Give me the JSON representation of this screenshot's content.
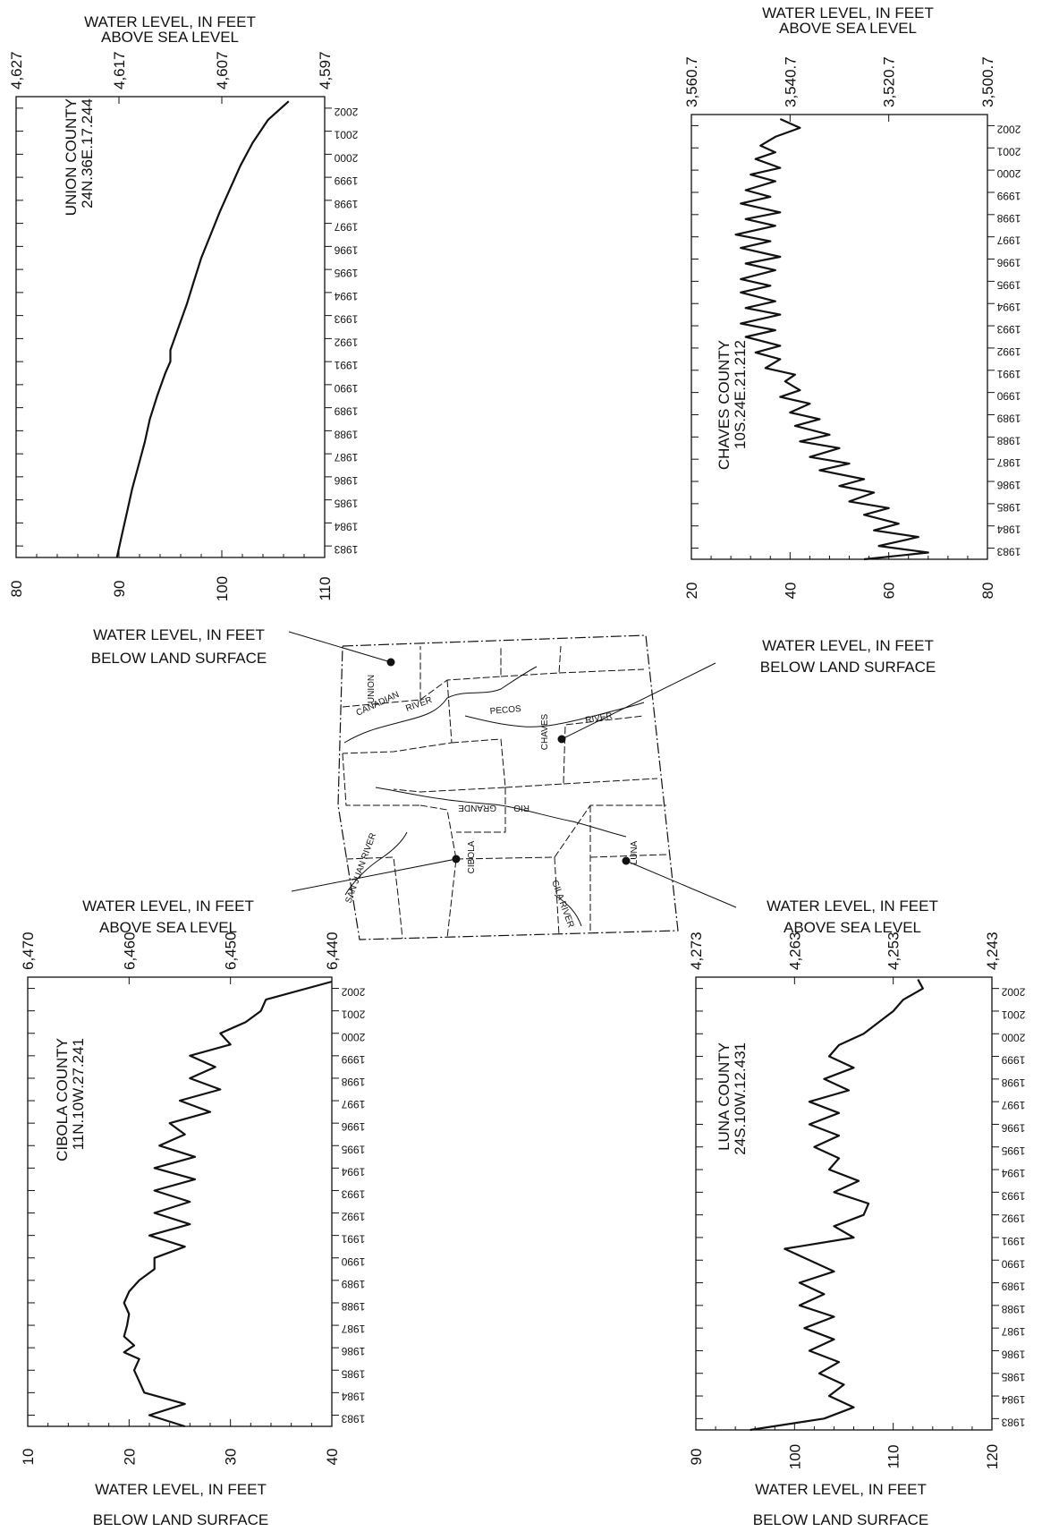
{
  "colors": {
    "ink": "#111111",
    "background": "#ffffff"
  },
  "labels": {
    "above_sea_level": [
      "WATER LEVEL, IN FEET",
      "ABOVE SEA LEVEL"
    ],
    "below_land_surface": [
      "WATER LEVEL, IN FEET",
      "BELOW LAND SURFACE"
    ]
  },
  "map": {
    "county_labels": [
      "UNION",
      "CHAVES",
      "CIBOLA",
      "LUNA"
    ],
    "river_labels": [
      "CANADIAN",
      "RIVER",
      "PECOS",
      "RIVER",
      "RIO",
      "GRANDE",
      "SAN JUAN RIVER",
      "GILA RIVER"
    ]
  },
  "chart_data": [
    {
      "type": "line",
      "title": "UNION COUNTY",
      "subtitle": "24N.36E.17.244",
      "time_axis_ticks": [
        "1983",
        "1984",
        "1985",
        "1986",
        "1987",
        "1988",
        "1989",
        "1990",
        "1991",
        "1992",
        "1993",
        "1994",
        "1995",
        "1996",
        "1997",
        "1998",
        "1999",
        "2000",
        "2001",
        "2002"
      ],
      "below_land_surface_ticks": [
        "80",
        "90",
        "100",
        "110"
      ],
      "below_land_surface_range": [
        80,
        110
      ],
      "above_sea_level_ticks": [
        "4,627",
        "4,617",
        "4,607",
        "4,597"
      ],
      "xlabel_top": "WATER LEVEL, IN FEET ABOVE SEA LEVEL",
      "xlabel_bottom": "WATER LEVEL, IN FEET BELOW LAND SURFACE",
      "x": [
        1983,
        1984,
        1985,
        1986,
        1987,
        1988,
        1989,
        1990,
        1991,
        1991.5,
        1992,
        1993,
        1994,
        1995,
        1996,
        1997,
        1998,
        1999,
        2000,
        2001,
        2002,
        2002.8
      ],
      "y": [
        89.8,
        90.3,
        90.8,
        91.3,
        91.9,
        92.5,
        93.0,
        93.7,
        94.5,
        95.0,
        95.0,
        95.8,
        96.6,
        97.3,
        98.0,
        98.9,
        99.8,
        100.8,
        101.8,
        103.0,
        104.5,
        106.5
      ]
    },
    {
      "type": "line",
      "title": "CHAVES COUNTY",
      "subtitle": "10S.24E.21.212",
      "time_axis_ticks": [
        "1983",
        "1984",
        "1985",
        "1986",
        "1987",
        "1988",
        "1989",
        "1990",
        "1991",
        "1992",
        "1993",
        "1994",
        "1995",
        "1996",
        "1997",
        "1998",
        "1999",
        "2000",
        "2001",
        "2002"
      ],
      "below_land_surface_ticks": [
        "20",
        "40",
        "60",
        "80"
      ],
      "below_land_surface_range": [
        20,
        80
      ],
      "above_sea_level_ticks": [
        "3,560.7",
        "3,540.7",
        "3,520.7",
        "3,500.7"
      ],
      "xlabel_top": "WATER LEVEL, IN FEET ABOVE SEA LEVEL",
      "xlabel_bottom": "WATER LEVEL, IN FEET BELOW LAND SURFACE",
      "x": [
        1983,
        1983.3,
        1983.6,
        1984,
        1984.3,
        1984.6,
        1985,
        1985.3,
        1985.6,
        1986,
        1986.3,
        1986.6,
        1987,
        1987.3,
        1987.6,
        1988,
        1988.3,
        1988.6,
        1989,
        1989.3,
        1989.6,
        1990,
        1990.3,
        1990.6,
        1991,
        1991.3,
        1991.6,
        1992,
        1992.3,
        1992.6,
        1993,
        1993.3,
        1993.6,
        1994,
        1994.3,
        1994.6,
        1995,
        1995.3,
        1995.6,
        1996,
        1996.3,
        1996.6,
        1997,
        1997.3,
        1997.6,
        1998,
        1998.3,
        1998.6,
        1999,
        1999.3,
        1999.6,
        2000,
        2000.3,
        2000.6,
        2001,
        2001.3,
        2001.6,
        2002,
        2002.4,
        2002.8
      ],
      "y": [
        55,
        68,
        58,
        66,
        57,
        62,
        55,
        60,
        52,
        57,
        50,
        55,
        46,
        52,
        44,
        50,
        42,
        48,
        41,
        46,
        40,
        44,
        38,
        42,
        39,
        41,
        35,
        38,
        33,
        38,
        31,
        37,
        30,
        38,
        31,
        37,
        30,
        36,
        30,
        37,
        31,
        38,
        30,
        36,
        29,
        37,
        31,
        38,
        30,
        36,
        31,
        37,
        32,
        38,
        33,
        37,
        34,
        37,
        42,
        38
      ]
    },
    {
      "type": "line",
      "title": "CIBOLA COUNTY",
      "subtitle": "11N.10W.27.241",
      "time_axis_ticks": [
        "1983",
        "1984",
        "1985",
        "1986",
        "1987",
        "1988",
        "1989",
        "1990",
        "1991",
        "1992",
        "1993",
        "1994",
        "1995",
        "1996",
        "1997",
        "1998",
        "1999",
        "2000",
        "2001",
        "2002"
      ],
      "below_land_surface_ticks": [
        "10",
        "20",
        "30",
        "40"
      ],
      "below_land_surface_range": [
        10,
        40
      ],
      "above_sea_level_ticks": [
        "6,470",
        "6,460",
        "6,450",
        "6,440"
      ],
      "xlabel_top": "WATER LEVEL, IN FEET ABOVE SEA LEVEL",
      "xlabel_bottom": "WATER LEVEL, IN FEET BELOW LAND SURFACE",
      "x": [
        1983,
        1983.5,
        1984,
        1984.5,
        1985,
        1985.5,
        1986,
        1986.3,
        1986.6,
        1987,
        1987.5,
        1988,
        1988.5,
        1989,
        1989.5,
        1990,
        1990.5,
        1991,
        1991.5,
        1992,
        1992.5,
        1993,
        1993.5,
        1994,
        1994.5,
        1995,
        1995.5,
        1996,
        1996.5,
        1997,
        1997.5,
        1998,
        1998.5,
        1999,
        1999.5,
        2000,
        2000.5,
        2001,
        2001.5,
        2002,
        2002.8
      ],
      "y": [
        25.5,
        22.0,
        25.5,
        21.5,
        21.0,
        20.5,
        21.0,
        19.5,
        20.5,
        19.5,
        19.8,
        20.0,
        19.5,
        20.0,
        21.0,
        22.5,
        22.5,
        25.5,
        22.0,
        26.0,
        22.5,
        26.0,
        22.5,
        26.5,
        22.5,
        26.5,
        23.0,
        25.5,
        24.0,
        28.0,
        25.0,
        29.0,
        26.0,
        28.5,
        26.0,
        30.0,
        29.0,
        31.5,
        33.0,
        33.5,
        40.0
      ]
    },
    {
      "type": "line",
      "title": "LUNA COUNTY",
      "subtitle": "24S.10W.12.431",
      "time_axis_ticks": [
        "1983",
        "1984",
        "1985",
        "1986",
        "1987",
        "1988",
        "1989",
        "1990",
        "1991",
        "1992",
        "1993",
        "1994",
        "1995",
        "1996",
        "1997",
        "1998",
        "1999",
        "2000",
        "2001",
        "2002"
      ],
      "below_land_surface_ticks": [
        "90",
        "100",
        "110",
        "120"
      ],
      "below_land_surface_range": [
        90,
        120
      ],
      "above_sea_level_ticks": [
        "4,273",
        "4,263",
        "4,253",
        "4,243"
      ],
      "xlabel_top": "WATER LEVEL, IN FEET ABOVE SEA LEVEL",
      "xlabel_bottom": "WATER LEVEL, IN FEET BELOW LAND SURFACE",
      "x": [
        1983,
        1983.5,
        1984,
        1984.5,
        1985,
        1985.5,
        1986,
        1986.5,
        1987,
        1987.5,
        1988,
        1988.5,
        1989,
        1989.5,
        1990,
        1990.5,
        1991,
        1991.5,
        1992,
        1992.5,
        1993,
        1993.5,
        1994,
        1994.5,
        1995,
        1995.5,
        1996,
        1996.5,
        1997,
        1997.5,
        1998,
        1998.5,
        1999,
        1999.5,
        2000,
        2000.5,
        2001,
        2001.5,
        2002,
        2002.5,
        2002.9
      ],
      "y": [
        95.5,
        103.0,
        106.0,
        103.5,
        105.0,
        102.5,
        104.5,
        101.5,
        104.0,
        101.0,
        104.0,
        100.5,
        103.0,
        100.5,
        104.0,
        101.5,
        99.0,
        106.0,
        104.0,
        107.0,
        107.5,
        104.0,
        106.5,
        103.5,
        104.5,
        102.0,
        104.5,
        101.5,
        104.5,
        101.5,
        105.5,
        103.0,
        106.0,
        103.5,
        104.5,
        107.0,
        108.5,
        110.0,
        111.0,
        113.0,
        112.5
      ]
    }
  ]
}
